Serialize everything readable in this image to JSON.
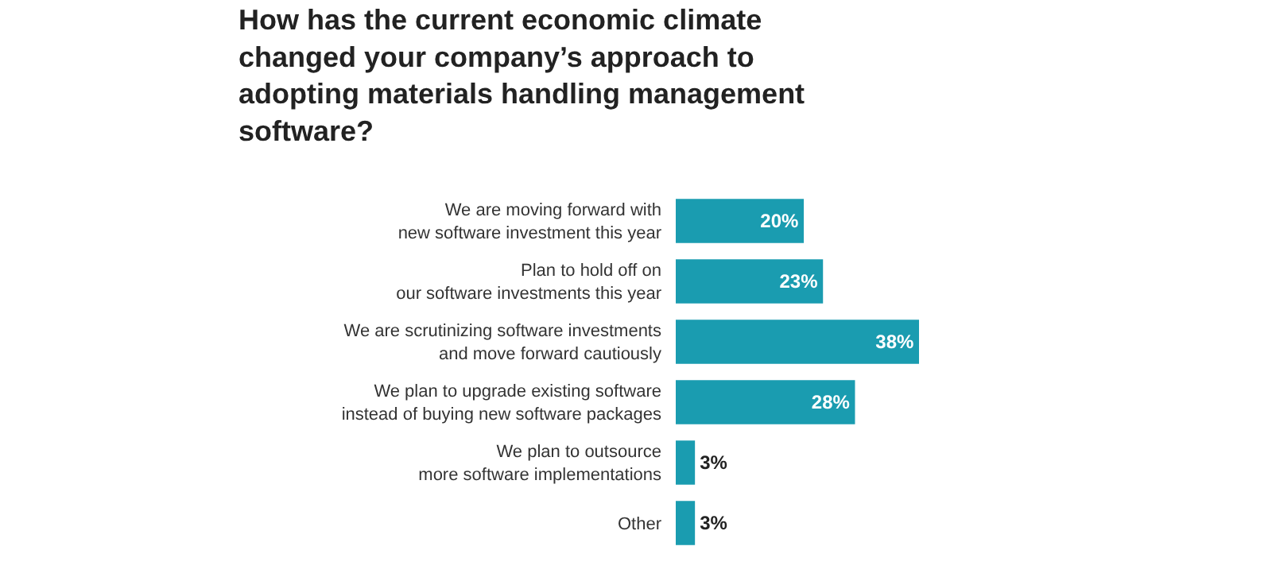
{
  "chart_data": {
    "type": "bar",
    "orientation": "horizontal",
    "title": "How has the current economic climate changed your company’s approach to adopting materials handling management software?",
    "categories": [
      "We are moving forward with\nnew software investment this year",
      "Plan to hold off on\nour software investments this year",
      "We are scrutinizing software investments\nand move forward cautiously",
      "We plan to upgrade existing software\ninstead of buying new software packages",
      "We plan to outsource\nmore software implementations",
      "Other"
    ],
    "values": [
      20,
      23,
      38,
      28,
      3,
      3
    ],
    "value_labels": [
      "20%",
      "23%",
      "38%",
      "28%",
      "3%",
      "3%"
    ],
    "color": "#1a9cb0"
  }
}
